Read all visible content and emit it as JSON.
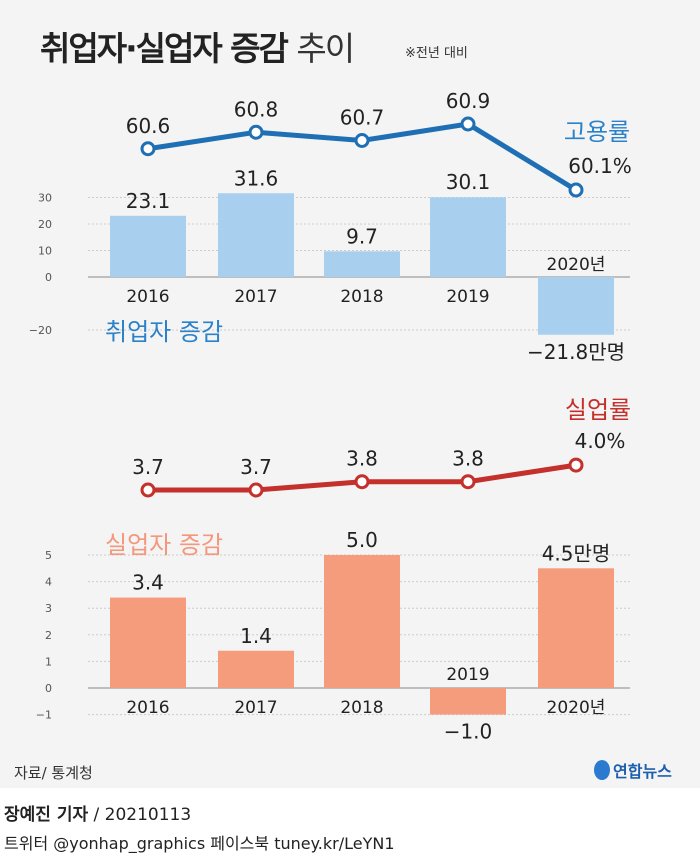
{
  "title": {
    "main": "취업자·실업자 증감",
    "suffix": "추이",
    "note": "※전년 대비"
  },
  "colors": {
    "employment_line": "#1f6fb5",
    "employment_bar": "#a9cfee",
    "unemp_line": "#c4302b",
    "unemp_bar": "#f59c7c",
    "label_blue": "#2b82c9",
    "label_salmon": "#f4977a"
  },
  "chart_data": [
    {
      "type": "bar+line",
      "categories": [
        "2016",
        "2017",
        "2018",
        "2019",
        "2020년"
      ],
      "bar_series": {
        "name": "취업자 증감",
        "values": [
          23.1,
          31.6,
          9.7,
          30.1,
          -21.8
        ],
        "labels": [
          "23.1",
          "31.6",
          "9.7",
          "30.1",
          "−21.8만명"
        ],
        "unit": "만명"
      },
      "line_series": {
        "name": "고용률",
        "values": [
          60.6,
          60.8,
          60.7,
          60.9,
          60.1
        ],
        "labels": [
          "60.6",
          "60.8",
          "60.7",
          "60.9",
          "60.1%"
        ],
        "unit": "%"
      },
      "yticks": [
        "30",
        "20",
        "10",
        "0",
        "−20"
      ],
      "ytick_values": [
        30,
        20,
        10,
        0,
        -20
      ],
      "ylim": [
        -22,
        33
      ],
      "grid": true
    },
    {
      "type": "bar+line",
      "categories": [
        "2016",
        "2017",
        "2018",
        "2019",
        "2020년"
      ],
      "bar_series": {
        "name": "실업자 증감",
        "values": [
          3.4,
          1.4,
          5.0,
          -1.0,
          4.5
        ],
        "labels": [
          "3.4",
          "1.4",
          "5.0",
          "−1.0",
          "4.5만명"
        ],
        "unit": "만명"
      },
      "line_series": {
        "name": "실업률",
        "values": [
          3.7,
          3.7,
          3.8,
          3.8,
          4.0
        ],
        "labels": [
          "3.7",
          "3.7",
          "3.8",
          "3.8",
          "4.0%"
        ],
        "unit": "%"
      },
      "yticks": [
        "5",
        "4",
        "3",
        "2",
        "1",
        "0",
        "−1"
      ],
      "ytick_values": [
        5,
        4,
        3,
        2,
        1,
        0,
        -1
      ],
      "ylim": [
        -1,
        5
      ],
      "grid": true
    }
  ],
  "footer": {
    "source": "자료/ 통계청",
    "logo": "연합뉴스",
    "reporter": "장예진 기자",
    "date": "/ 20210113",
    "social": "트위터 @yonhap_graphics  페이스북 tuney.kr/LeYN1"
  }
}
